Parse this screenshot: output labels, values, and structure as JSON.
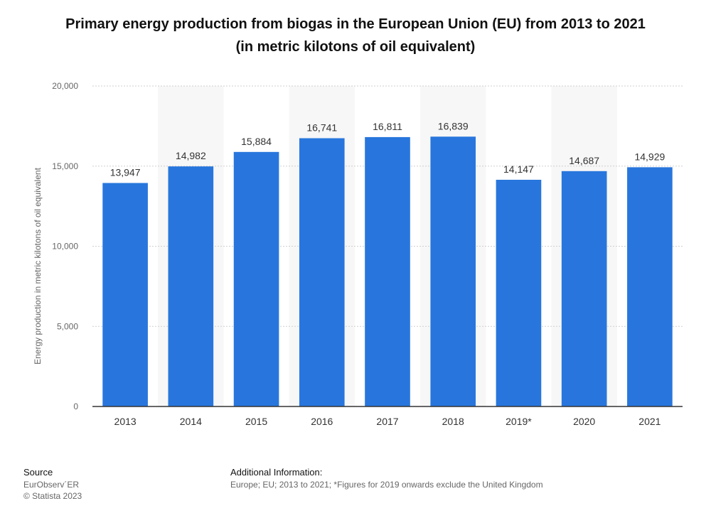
{
  "title": {
    "line1": "Primary energy production from biogas in the European Union (EU) from 2013 to 2021",
    "line2": "(in metric kilotons of oil equivalent)"
  },
  "chart_data": {
    "type": "bar",
    "categories": [
      "2013",
      "2014",
      "2015",
      "2016",
      "2017",
      "2018",
      "2019*",
      "2020",
      "2021"
    ],
    "values": [
      13947,
      14982,
      15884,
      16741,
      16811,
      16839,
      14147,
      14687,
      14929
    ],
    "data_labels": [
      "13,947",
      "14,982",
      "15,884",
      "16,741",
      "16,811",
      "16,839",
      "14,147",
      "14,687",
      "14,929"
    ],
    "ylabel": "Energy production in metric kilotons of oil equivalent",
    "xlabel": "",
    "ylim": [
      0,
      20000
    ],
    "yticks": [
      0,
      5000,
      10000,
      15000,
      20000
    ],
    "ytick_labels": [
      "0",
      "5,000",
      "10,000",
      "15,000",
      "20,000"
    ],
    "grid": true,
    "bar_color": "#2876dd"
  },
  "footer": {
    "source_heading": "Source",
    "source_lines": [
      "EurObserv´ER",
      "© Statista 2023"
    ],
    "info_heading": "Additional Information:",
    "info_text": "Europe; EU; 2013 to 2021; *Figures for 2019 onwards exclude the United Kingdom"
  }
}
